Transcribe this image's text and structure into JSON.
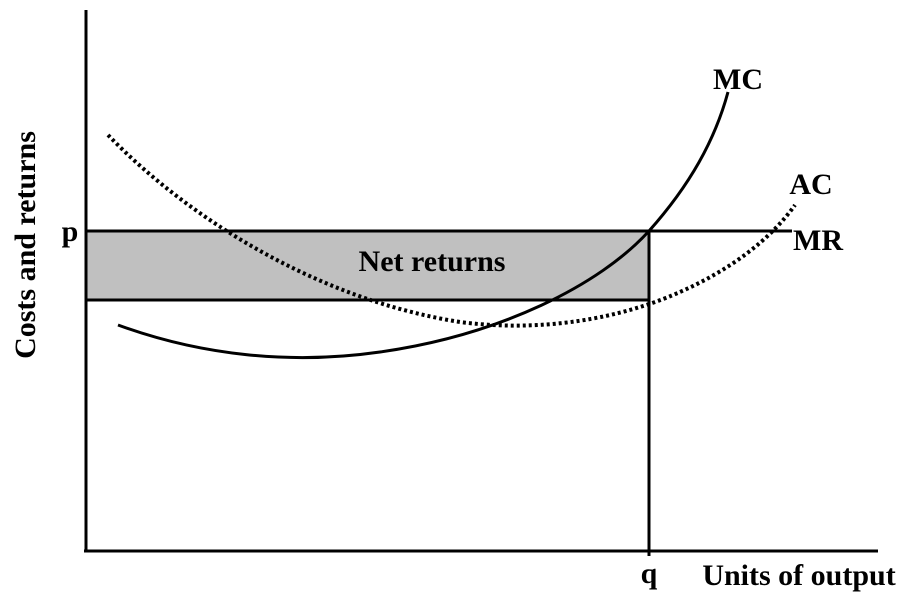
{
  "diagram": {
    "y_axis_label": "Costs and returns",
    "x_axis_label": "Units of output",
    "price_label": "p",
    "quantity_label": "q",
    "area_label": "Net returns",
    "curves": [
      "MC",
      "AC",
      "MR"
    ]
  }
}
